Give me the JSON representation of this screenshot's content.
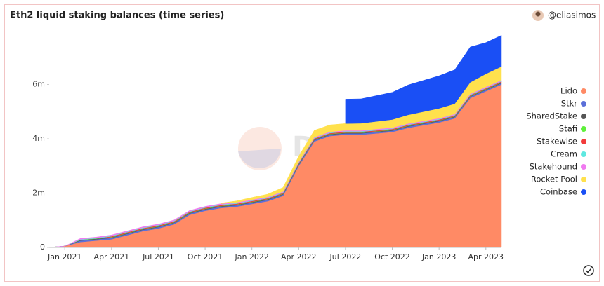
{
  "chart_data": {
    "type": "stacked-area",
    "title": "Eth2 liquid staking balances (time series)",
    "author": "@eliasimos",
    "watermark": "Dune",
    "legend": "right",
    "grid": false,
    "x": [
      "2020-12",
      "2021-01",
      "2021-02",
      "2021-03",
      "2021-04",
      "2021-05",
      "2021-06",
      "2021-07",
      "2021-08",
      "2021-09",
      "2021-10",
      "2021-11",
      "2021-12",
      "2022-01",
      "2022-02",
      "2022-03",
      "2022-04",
      "2022-05",
      "2022-06",
      "2022-07",
      "2022-08",
      "2022-09",
      "2022-10",
      "2022-11",
      "2022-12",
      "2023-01",
      "2023-02",
      "2023-03",
      "2023-04",
      "2023-05"
    ],
    "xlim": [
      "2020-12",
      "2023-05"
    ],
    "xticks": [
      {
        "value": "2021-01",
        "label": "Jan 2021"
      },
      {
        "value": "2021-04",
        "label": "Apr 2021"
      },
      {
        "value": "2021-07",
        "label": "Jul 2021"
      },
      {
        "value": "2021-10",
        "label": "Oct 2021"
      },
      {
        "value": "2022-01",
        "label": "Jan 2022"
      },
      {
        "value": "2022-04",
        "label": "Apr 2022"
      },
      {
        "value": "2022-07",
        "label": "Jul 2022"
      },
      {
        "value": "2022-10",
        "label": "Oct 2022"
      },
      {
        "value": "2023-01",
        "label": "Jan 2023"
      },
      {
        "value": "2023-04",
        "label": "Apr 2023"
      }
    ],
    "ylim": [
      0,
      8000000
    ],
    "yticks": [
      0,
      {
        "value": 2000000,
        "label": "2m"
      },
      {
        "value": 4000000,
        "label": "4m"
      },
      {
        "value": 6000000,
        "label": "6m"
      }
    ],
    "series": [
      {
        "name": "Lido",
        "color": "#ff8a65",
        "values": [
          0,
          50000,
          200000,
          250000,
          300000,
          450000,
          600000,
          700000,
          850000,
          1200000,
          1350000,
          1450000,
          1500000,
          1600000,
          1700000,
          1900000,
          3000000,
          3900000,
          4100000,
          4150000,
          4150000,
          4200000,
          4250000,
          4400000,
          4500000,
          4600000,
          4750000,
          5500000,
          5750000,
          6000000
        ]
      },
      {
        "name": "Stkr",
        "color": "#5b6fd8",
        "values": [
          0,
          0,
          50000,
          50000,
          50000,
          50000,
          50000,
          50000,
          50000,
          50000,
          50000,
          50000,
          50000,
          50000,
          50000,
          50000,
          50000,
          50000,
          50000,
          50000,
          50000,
          50000,
          50000,
          50000,
          50000,
          50000,
          50000,
          50000,
          50000,
          50000
        ]
      },
      {
        "name": "SharedStake",
        "color": "#555555",
        "values": [
          0,
          0,
          20000,
          20000,
          20000,
          20000,
          20000,
          20000,
          20000,
          20000,
          20000,
          20000,
          20000,
          20000,
          20000,
          20000,
          20000,
          20000,
          20000,
          20000,
          20000,
          20000,
          20000,
          20000,
          20000,
          20000,
          20000,
          20000,
          20000,
          20000
        ]
      },
      {
        "name": "Stafi",
        "color": "#5ef03a",
        "values": [
          0,
          0,
          10000,
          10000,
          10000,
          10000,
          10000,
          10000,
          10000,
          10000,
          10000,
          10000,
          10000,
          10000,
          10000,
          10000,
          10000,
          10000,
          10000,
          10000,
          10000,
          10000,
          10000,
          10000,
          10000,
          10000,
          10000,
          10000,
          10000,
          10000
        ]
      },
      {
        "name": "Stakewise",
        "color": "#f23b3b",
        "values": [
          0,
          0,
          0,
          0,
          30000,
          30000,
          30000,
          30000,
          30000,
          30000,
          30000,
          30000,
          30000,
          30000,
          30000,
          30000,
          30000,
          30000,
          30000,
          30000,
          30000,
          30000,
          30000,
          30000,
          30000,
          30000,
          30000,
          30000,
          30000,
          30000
        ]
      },
      {
        "name": "Cream",
        "color": "#5ee8e0",
        "values": [
          0,
          0,
          20000,
          20000,
          20000,
          20000,
          20000,
          20000,
          20000,
          20000,
          20000,
          20000,
          20000,
          20000,
          20000,
          20000,
          20000,
          20000,
          20000,
          20000,
          20000,
          20000,
          20000,
          20000,
          20000,
          20000,
          20000,
          20000,
          20000,
          20000
        ]
      },
      {
        "name": "Stakehound",
        "color": "#f07af0",
        "values": [
          0,
          0,
          30000,
          30000,
          30000,
          30000,
          30000,
          30000,
          30000,
          30000,
          30000,
          30000,
          30000,
          30000,
          30000,
          30000,
          30000,
          30000,
          30000,
          30000,
          30000,
          30000,
          30000,
          30000,
          30000,
          30000,
          30000,
          30000,
          30000,
          30000
        ]
      },
      {
        "name": "Rocket Pool",
        "color": "#ffe14d",
        "values": [
          null,
          null,
          null,
          null,
          null,
          null,
          null,
          null,
          null,
          null,
          null,
          20000,
          50000,
          80000,
          100000,
          150000,
          200000,
          250000,
          250000,
          250000,
          260000,
          280000,
          300000,
          320000,
          340000,
          360000,
          380000,
          420000,
          480000,
          500000
        ]
      },
      {
        "name": "Coinbase",
        "color": "#1a4ff5",
        "values": [
          null,
          null,
          null,
          null,
          null,
          null,
          null,
          null,
          null,
          null,
          null,
          null,
          null,
          null,
          null,
          null,
          null,
          null,
          null,
          900000,
          900000,
          950000,
          1000000,
          1100000,
          1150000,
          1200000,
          1250000,
          1300000,
          1150000,
          1150000
        ]
      }
    ]
  }
}
